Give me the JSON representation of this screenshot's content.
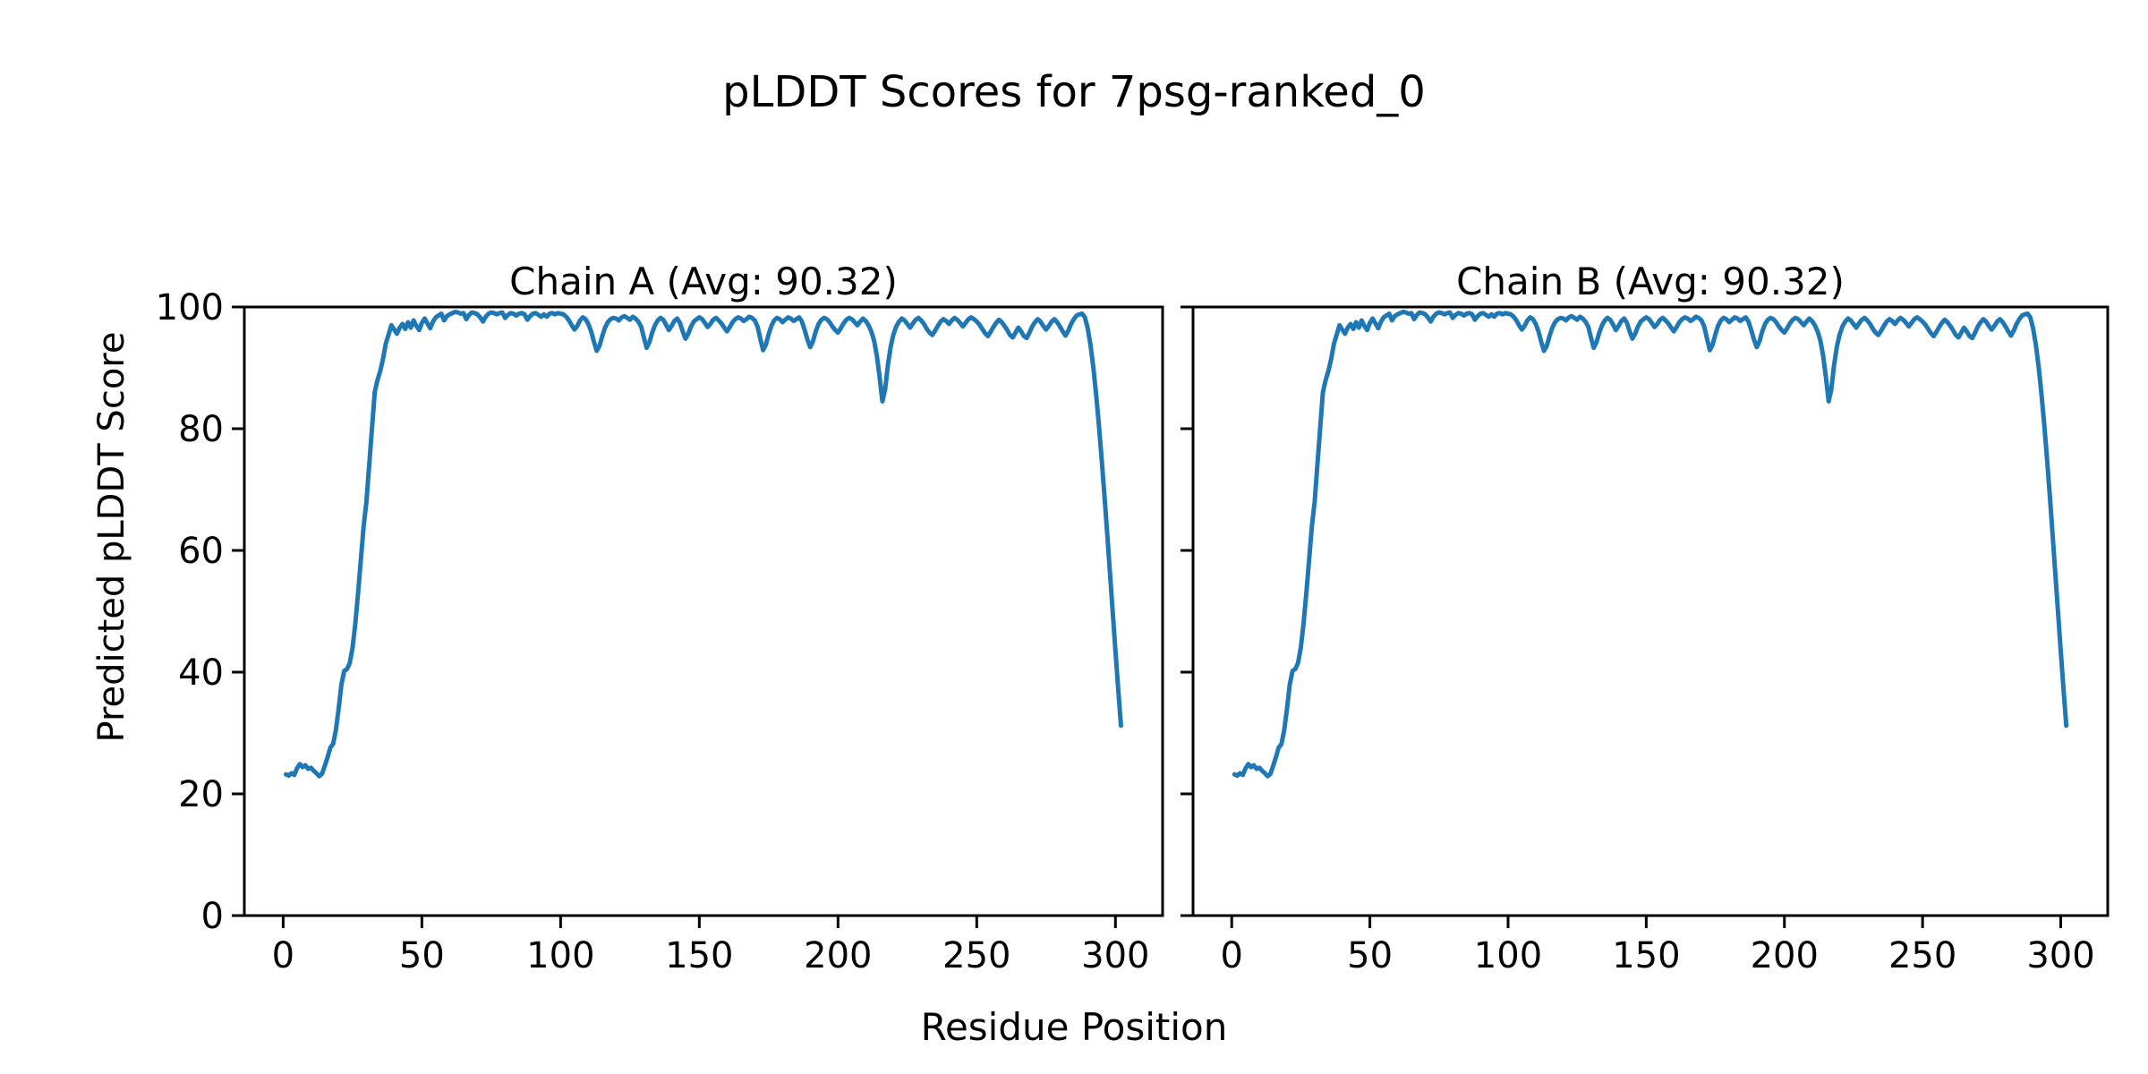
{
  "chart_data": {
    "type": "line",
    "title": "pLDDT Scores for 7psg-ranked_0",
    "xlabel": "Residue Position",
    "ylabel": "Predicted pLDDT Score",
    "xlim": [
      -14,
      317
    ],
    "ylim": [
      0,
      100
    ],
    "xticks": [
      0,
      50,
      100,
      150,
      200,
      250,
      300
    ],
    "yticks": [
      0,
      20,
      40,
      60,
      80,
      100
    ],
    "grid": false,
    "legend": "none",
    "line_color": "#1f77b4",
    "axis_color": "#000000",
    "x_start": 1,
    "subplots": [
      {
        "title": "Chain A (Avg: 90.32)",
        "chain": "A",
        "avg": 90.32,
        "series": {
          "name": "Chain A pLDDT",
          "values": [
            23.2,
            23.0,
            23.4,
            23.1,
            24.2,
            24.9,
            24.4,
            24.7,
            24.1,
            24.3,
            23.8,
            23.4,
            22.9,
            23.3,
            24.6,
            26.0,
            27.6,
            28.2,
            30.5,
            34.0,
            38.0,
            40.2,
            40.5,
            41.5,
            44.0,
            48.0,
            53.0,
            58.5,
            64.0,
            68.0,
            74.0,
            80.0,
            86.0,
            88.0,
            89.5,
            91.5,
            94.0,
            95.5,
            97.0,
            96.3,
            95.6,
            96.6,
            97.2,
            96.4,
            97.5,
            96.6,
            97.8,
            96.9,
            96.2,
            97.4,
            98.1,
            97.3,
            96.5,
            97.6,
            98.3,
            98.6,
            98.9,
            97.8,
            98.5,
            98.8,
            99.0,
            99.2,
            99.1,
            98.9,
            99.0,
            98.0,
            98.7,
            99.1,
            99.0,
            98.8,
            98.3,
            97.6,
            98.4,
            98.9,
            99.1,
            99.0,
            98.8,
            99.0,
            99.1,
            98.2,
            98.7,
            99.0,
            98.9,
            98.6,
            98.9,
            99.0,
            98.8,
            97.9,
            98.5,
            98.9,
            99.0,
            98.7,
            98.4,
            98.8,
            98.4,
            98.9,
            99.0,
            98.8,
            99.0,
            98.9,
            98.8,
            98.4,
            97.8,
            97.0,
            96.3,
            96.9,
            97.8,
            98.3,
            98.0,
            97.2,
            96.0,
            94.3,
            92.8,
            93.6,
            95.2,
            96.6,
            97.5,
            98.0,
            98.2,
            98.1,
            97.8,
            98.3,
            98.5,
            98.2,
            97.9,
            98.4,
            98.1,
            97.6,
            96.8,
            95.0,
            93.3,
            94.2,
            95.8,
            97.0,
            97.8,
            98.2,
            97.9,
            97.1,
            96.2,
            96.9,
            97.7,
            98.1,
            97.4,
            96.0,
            94.8,
            95.6,
            96.8,
            97.6,
            98.0,
            98.3,
            98.0,
            97.4,
            96.7,
            97.2,
            97.9,
            98.2,
            97.8,
            97.3,
            96.6,
            96.0,
            96.7,
            97.5,
            98.0,
            98.3,
            98.1,
            97.7,
            98.0,
            98.4,
            98.2,
            97.8,
            96.8,
            94.8,
            92.9,
            93.8,
            95.5,
            96.9,
            97.8,
            98.2,
            98.0,
            97.5,
            97.9,
            98.3,
            98.1,
            97.7,
            98.0,
            98.3,
            97.6,
            96.2,
            94.6,
            93.4,
            94.4,
            96.0,
            97.2,
            97.9,
            98.2,
            98.0,
            97.5,
            96.8,
            96.2,
            95.8,
            96.5,
            97.3,
            97.9,
            98.2,
            98.0,
            97.5,
            97.0,
            97.6,
            98.1,
            97.7,
            97.0,
            96.0,
            94.5,
            92.0,
            88.5,
            84.5,
            86.5,
            90.5,
            93.5,
            95.5,
            96.8,
            97.6,
            98.1,
            97.8,
            97.2,
            96.6,
            97.3,
            97.9,
            98.2,
            97.8,
            97.2,
            96.4,
            95.8,
            95.4,
            96.1,
            96.9,
            97.6,
            98.0,
            97.7,
            97.2,
            97.8,
            98.2,
            97.9,
            97.4,
            96.8,
            97.4,
            98.0,
            98.3,
            98.0,
            97.6,
            97.1,
            96.4,
            95.7,
            95.2,
            95.9,
            96.7,
            97.4,
            97.9,
            97.5,
            96.9,
            96.2,
            95.4,
            95.0,
            95.8,
            96.6,
            96.0,
            95.2,
            94.9,
            95.8,
            96.8,
            97.5,
            98.0,
            97.6,
            96.9,
            96.3,
            96.9,
            97.6,
            98.0,
            97.5,
            96.8,
            96.0,
            95.3,
            96.1,
            97.2,
            98.0,
            98.6,
            98.8,
            98.9,
            98.3,
            96.5,
            93.8,
            90.2,
            85.8,
            80.8,
            75.2,
            69.2,
            63.0,
            56.5,
            50.0,
            43.5,
            37.2,
            31.2
          ]
        }
      },
      {
        "title": "Chain B (Avg: 90.32)",
        "chain": "B",
        "avg": 90.32,
        "series": {
          "name": "Chain B pLDDT",
          "values": [
            23.2,
            23.0,
            23.4,
            23.1,
            24.2,
            24.9,
            24.4,
            24.7,
            24.1,
            24.3,
            23.8,
            23.4,
            22.9,
            23.3,
            24.6,
            26.0,
            27.6,
            28.2,
            30.5,
            34.0,
            38.0,
            40.2,
            40.5,
            41.5,
            44.0,
            48.0,
            53.0,
            58.5,
            64.0,
            68.0,
            74.0,
            80.0,
            86.0,
            88.0,
            89.5,
            91.5,
            94.0,
            95.5,
            97.0,
            96.3,
            95.6,
            96.6,
            97.2,
            96.4,
            97.5,
            96.6,
            97.8,
            96.9,
            96.2,
            97.4,
            98.1,
            97.3,
            96.5,
            97.6,
            98.3,
            98.6,
            98.9,
            97.8,
            98.5,
            98.8,
            99.0,
            99.2,
            99.1,
            98.9,
            99.0,
            98.0,
            98.7,
            99.1,
            99.0,
            98.8,
            98.3,
            97.6,
            98.4,
            98.9,
            99.1,
            99.0,
            98.8,
            99.0,
            99.1,
            98.2,
            98.7,
            99.0,
            98.9,
            98.6,
            98.9,
            99.0,
            98.8,
            97.9,
            98.5,
            98.9,
            99.0,
            98.7,
            98.4,
            98.8,
            98.4,
            98.9,
            99.0,
            98.8,
            99.0,
            98.9,
            98.8,
            98.4,
            97.8,
            97.0,
            96.3,
            96.9,
            97.8,
            98.3,
            98.0,
            97.2,
            96.0,
            94.3,
            92.8,
            93.6,
            95.2,
            96.6,
            97.5,
            98.0,
            98.2,
            98.1,
            97.8,
            98.3,
            98.5,
            98.2,
            97.9,
            98.4,
            98.1,
            97.6,
            96.8,
            95.0,
            93.3,
            94.2,
            95.8,
            97.0,
            97.8,
            98.2,
            97.9,
            97.1,
            96.2,
            96.9,
            97.7,
            98.1,
            97.4,
            96.0,
            94.8,
            95.6,
            96.8,
            97.6,
            98.0,
            98.3,
            98.0,
            97.4,
            96.7,
            97.2,
            97.9,
            98.2,
            97.8,
            97.3,
            96.6,
            96.0,
            96.7,
            97.5,
            98.0,
            98.3,
            98.1,
            97.7,
            98.0,
            98.4,
            98.2,
            97.8,
            96.8,
            94.8,
            92.9,
            93.8,
            95.5,
            96.9,
            97.8,
            98.2,
            98.0,
            97.5,
            97.9,
            98.3,
            98.1,
            97.7,
            98.0,
            98.3,
            97.6,
            96.2,
            94.6,
            93.4,
            94.4,
            96.0,
            97.2,
            97.9,
            98.2,
            98.0,
            97.5,
            96.8,
            96.2,
            95.8,
            96.5,
            97.3,
            97.9,
            98.2,
            98.0,
            97.5,
            97.0,
            97.6,
            98.1,
            97.7,
            97.0,
            96.0,
            94.5,
            92.0,
            88.5,
            84.5,
            86.5,
            90.5,
            93.5,
            95.5,
            96.8,
            97.6,
            98.1,
            97.8,
            97.2,
            96.6,
            97.3,
            97.9,
            98.2,
            97.8,
            97.2,
            96.4,
            95.8,
            95.4,
            96.1,
            96.9,
            97.6,
            98.0,
            97.7,
            97.2,
            97.8,
            98.2,
            97.9,
            97.4,
            96.8,
            97.4,
            98.0,
            98.3,
            98.0,
            97.6,
            97.1,
            96.4,
            95.7,
            95.2,
            95.9,
            96.7,
            97.4,
            97.9,
            97.5,
            96.9,
            96.2,
            95.4,
            95.0,
            95.8,
            96.6,
            96.0,
            95.2,
            94.9,
            95.8,
            96.8,
            97.5,
            98.0,
            97.6,
            96.9,
            96.3,
            96.9,
            97.6,
            98.0,
            97.5,
            96.8,
            96.0,
            95.3,
            96.1,
            97.2,
            98.0,
            98.6,
            98.8,
            98.9,
            98.3,
            96.5,
            93.8,
            90.2,
            85.8,
            80.8,
            75.2,
            69.2,
            63.0,
            56.5,
            50.0,
            43.5,
            37.2,
            31.2
          ]
        }
      }
    ]
  }
}
